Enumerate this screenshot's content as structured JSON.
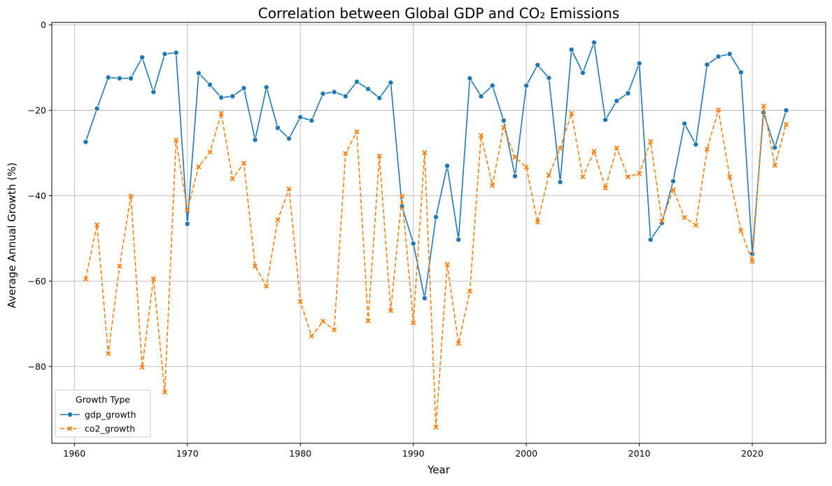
{
  "chart_data": {
    "type": "line",
    "title": "Correlation between Global GDP and CO₂ Emissions",
    "xlabel": "Year",
    "ylabel": "Average Annual Growth (%)",
    "xlim": [
      1958,
      2026.5
    ],
    "ylim": [
      -98,
      0.6
    ],
    "xticks": [
      1960,
      1970,
      1980,
      1990,
      2000,
      2010,
      2020
    ],
    "yticks": [
      0,
      -20,
      -40,
      -60,
      -80
    ],
    "grid": true,
    "legend": {
      "title": "Growth Type",
      "placement": "lower-left"
    },
    "x": [
      1961,
      1962,
      1963,
      1964,
      1965,
      1966,
      1967,
      1968,
      1969,
      1970,
      1971,
      1972,
      1973,
      1974,
      1975,
      1976,
      1977,
      1978,
      1979,
      1980,
      1981,
      1982,
      1983,
      1984,
      1985,
      1986,
      1987,
      1988,
      1989,
      1990,
      1991,
      1992,
      1993,
      1994,
      1995,
      1996,
      1997,
      1998,
      1999,
      2000,
      2001,
      2002,
      2003,
      2004,
      2005,
      2006,
      2007,
      2008,
      2009,
      2010,
      2011,
      2012,
      2013,
      2014,
      2015,
      2016,
      2017,
      2018,
      2019,
      2020,
      2021,
      2022,
      2023
    ],
    "series": [
      {
        "name": "gdp_growth",
        "color": "#1f77b4",
        "marker": "circle",
        "dash": "solid",
        "values": [
          -27.4,
          -19.6,
          -12.3,
          -12.5,
          -12.5,
          -7.6,
          -15.7,
          -6.8,
          -6.5,
          -46.6,
          -11.3,
          -14.0,
          -17.0,
          -16.7,
          -14.8,
          -26.9,
          -14.6,
          -24.1,
          -26.6,
          -21.6,
          -22.4,
          -16.1,
          -15.7,
          -16.7,
          -13.3,
          -15.0,
          -17.1,
          -13.5,
          -42.5,
          -51.2,
          -64.0,
          -45.0,
          -33.0,
          -50.3,
          -12.5,
          -16.7,
          -14.2,
          -22.4,
          -35.4,
          -14.2,
          -9.4,
          -12.4,
          -36.8,
          -5.8,
          -11.2,
          -4.1,
          -22.2,
          -17.8,
          -16.0,
          -9.0,
          -50.3,
          -46.4,
          -36.6,
          -23.1,
          -28.0,
          -9.3,
          -7.4,
          -6.8,
          -11.1,
          -53.6,
          -20.5,
          -28.7,
          -20.0
        ]
      },
      {
        "name": "co2_growth",
        "color": "#ff7f0e",
        "marker": "x",
        "dash": "dashed",
        "values": [
          -59.5,
          -46.8,
          -77.0,
          -56.5,
          -40.1,
          -80.2,
          -59.4,
          -86.0,
          -27.0,
          -43.4,
          -33.2,
          -29.8,
          -20.7,
          -36.0,
          -32.4,
          -56.5,
          -61.2,
          -45.7,
          -38.4,
          -64.8,
          -72.9,
          -69.4,
          -71.4,
          -30.1,
          -25.0,
          -69.3,
          -30.7,
          -66.9,
          -40.1,
          -69.8,
          -29.9,
          -94.2,
          -56.1,
          -74.6,
          -62.4,
          -25.9,
          -37.6,
          -24.0,
          -31.0,
          -33.3,
          -46.2,
          -35.1,
          -28.9,
          -20.7,
          -35.6,
          -29.6,
          -38.2,
          -28.8,
          -35.6,
          -34.8,
          -27.3,
          -45.9,
          -38.6,
          -45.1,
          -46.9,
          -29.1,
          -19.9,
          -35.6,
          -48.2,
          -55.4,
          -19.0,
          -32.9,
          -23.3
        ]
      }
    ]
  }
}
